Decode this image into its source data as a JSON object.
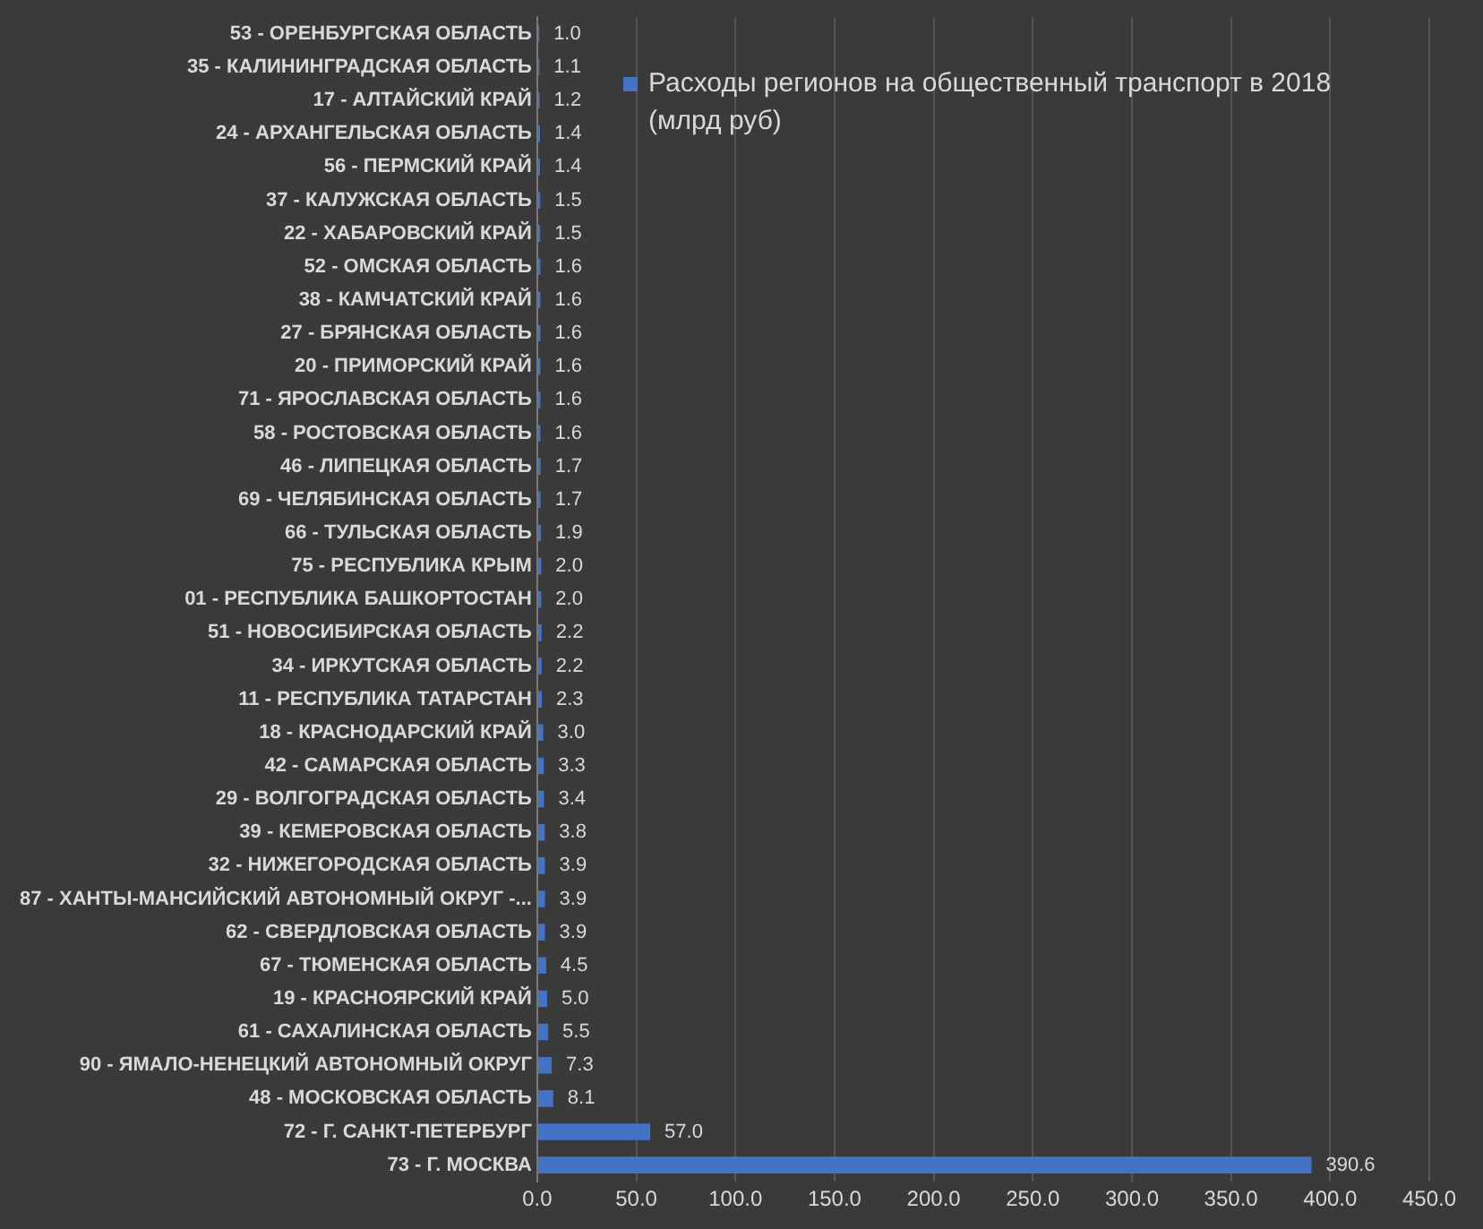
{
  "chart_data": {
    "type": "bar",
    "orientation": "horizontal",
    "categories": [
      "53 - ОРЕНБУРГСКАЯ ОБЛАСТЬ",
      "35 - КАЛИНИНГРАДСКАЯ ОБЛАСТЬ",
      "17 - АЛТАЙСКИЙ КРАЙ",
      "24 - АРХАНГЕЛЬСКАЯ ОБЛАСТЬ",
      "56 - ПЕРМСКИЙ КРАЙ",
      "37 - КАЛУЖСКАЯ ОБЛАСТЬ",
      "22 - ХАБАРОВСКИЙ КРАЙ",
      "52 - ОМСКАЯ ОБЛАСТЬ",
      "38 - КАМЧАТСКИЙ КРАЙ",
      "27 - БРЯНСКАЯ ОБЛАСТЬ",
      "20 - ПРИМОРСКИЙ КРАЙ",
      "71 - ЯРОСЛАВСКАЯ ОБЛАСТЬ",
      "58 - РОСТОВСКАЯ ОБЛАСТЬ",
      "46 - ЛИПЕЦКАЯ ОБЛАСТЬ",
      "69 - ЧЕЛЯБИНСКАЯ ОБЛАСТЬ",
      "66 - ТУЛЬСКАЯ ОБЛАСТЬ",
      "75 - РЕСПУБЛИКА КРЫМ",
      "01 - РЕСПУБЛИКА БАШКОРТОСТАН",
      "51 - НОВОСИБИРСКАЯ ОБЛАСТЬ",
      "34 - ИРКУТСКАЯ ОБЛАСТЬ",
      "11 - РЕСПУБЛИКА ТАТАРСТАН",
      "18 - КРАСНОДАРСКИЙ КРАЙ",
      "42 - САМАРСКАЯ ОБЛАСТЬ",
      "29 - ВОЛГОГРАДСКАЯ ОБЛАСТЬ",
      "39 - КЕМЕРОВСКАЯ ОБЛАСТЬ",
      "32 - НИЖЕГОРОДСКАЯ ОБЛАСТЬ",
      "87 - ХАНТЫ-МАНСИЙСКИЙ АВТОНОМНЫЙ ОКРУГ -...",
      "62 - СВЕРДЛОВСКАЯ ОБЛАСТЬ",
      "67 - ТЮМЕНСКАЯ ОБЛАСТЬ",
      "19 - КРАСНОЯРСКИЙ КРАЙ",
      "61 - САХАЛИНСКАЯ ОБЛАСТЬ",
      "90 - ЯМАЛО-НЕНЕЦКИЙ АВТОНОМНЫЙ ОКРУГ",
      "48 - МОСКОВСКАЯ ОБЛАСТЬ",
      "72 - Г. САНКТ-ПЕТЕРБУРГ",
      "73 - Г. МОСКВА"
    ],
    "series": [
      {
        "name": "Расходы регионов на общественный транспорт в 2018 (млрд руб)",
        "color": "#4472c4",
        "values": [
          1.0,
          1.1,
          1.2,
          1.4,
          1.4,
          1.5,
          1.5,
          1.6,
          1.6,
          1.6,
          1.6,
          1.6,
          1.6,
          1.7,
          1.7,
          1.9,
          2.0,
          2.0,
          2.2,
          2.2,
          2.3,
          3.0,
          3.3,
          3.4,
          3.8,
          3.9,
          3.9,
          3.9,
          4.5,
          5.0,
          5.5,
          7.3,
          8.1,
          57.0,
          390.6
        ],
        "value_labels": [
          "1.0",
          "1.1",
          "1.2",
          "1.4",
          "1.4",
          "1.5",
          "1.5",
          "1.6",
          "1.6",
          "1.6",
          "1.6",
          "1.6",
          "1.6",
          "1.7",
          "1.7",
          "1.9",
          "2.0",
          "2.0",
          "2.2",
          "2.2",
          "2.3",
          "3.0",
          "3.3",
          "3.4",
          "3.8",
          "3.9",
          "3.9",
          "3.9",
          "4.5",
          "5.0",
          "5.5",
          "7.3",
          "8.1",
          "57.0",
          "390.6"
        ]
      }
    ],
    "xlim": [
      0,
      450
    ],
    "xticks": [
      {
        "value": 0,
        "label": "0.0"
      },
      {
        "value": 50,
        "label": "50.0"
      },
      {
        "value": 100,
        "label": "100.0"
      },
      {
        "value": 150,
        "label": "150.0"
      },
      {
        "value": 200,
        "label": "200.0"
      },
      {
        "value": 250,
        "label": "250.0"
      },
      {
        "value": 300,
        "label": "300.0"
      },
      {
        "value": 350,
        "label": "350.0"
      },
      {
        "value": 400,
        "label": "400.0"
      },
      {
        "value": 450,
        "label": "450.0"
      }
    ],
    "grid": "x",
    "legend": "top right"
  }
}
